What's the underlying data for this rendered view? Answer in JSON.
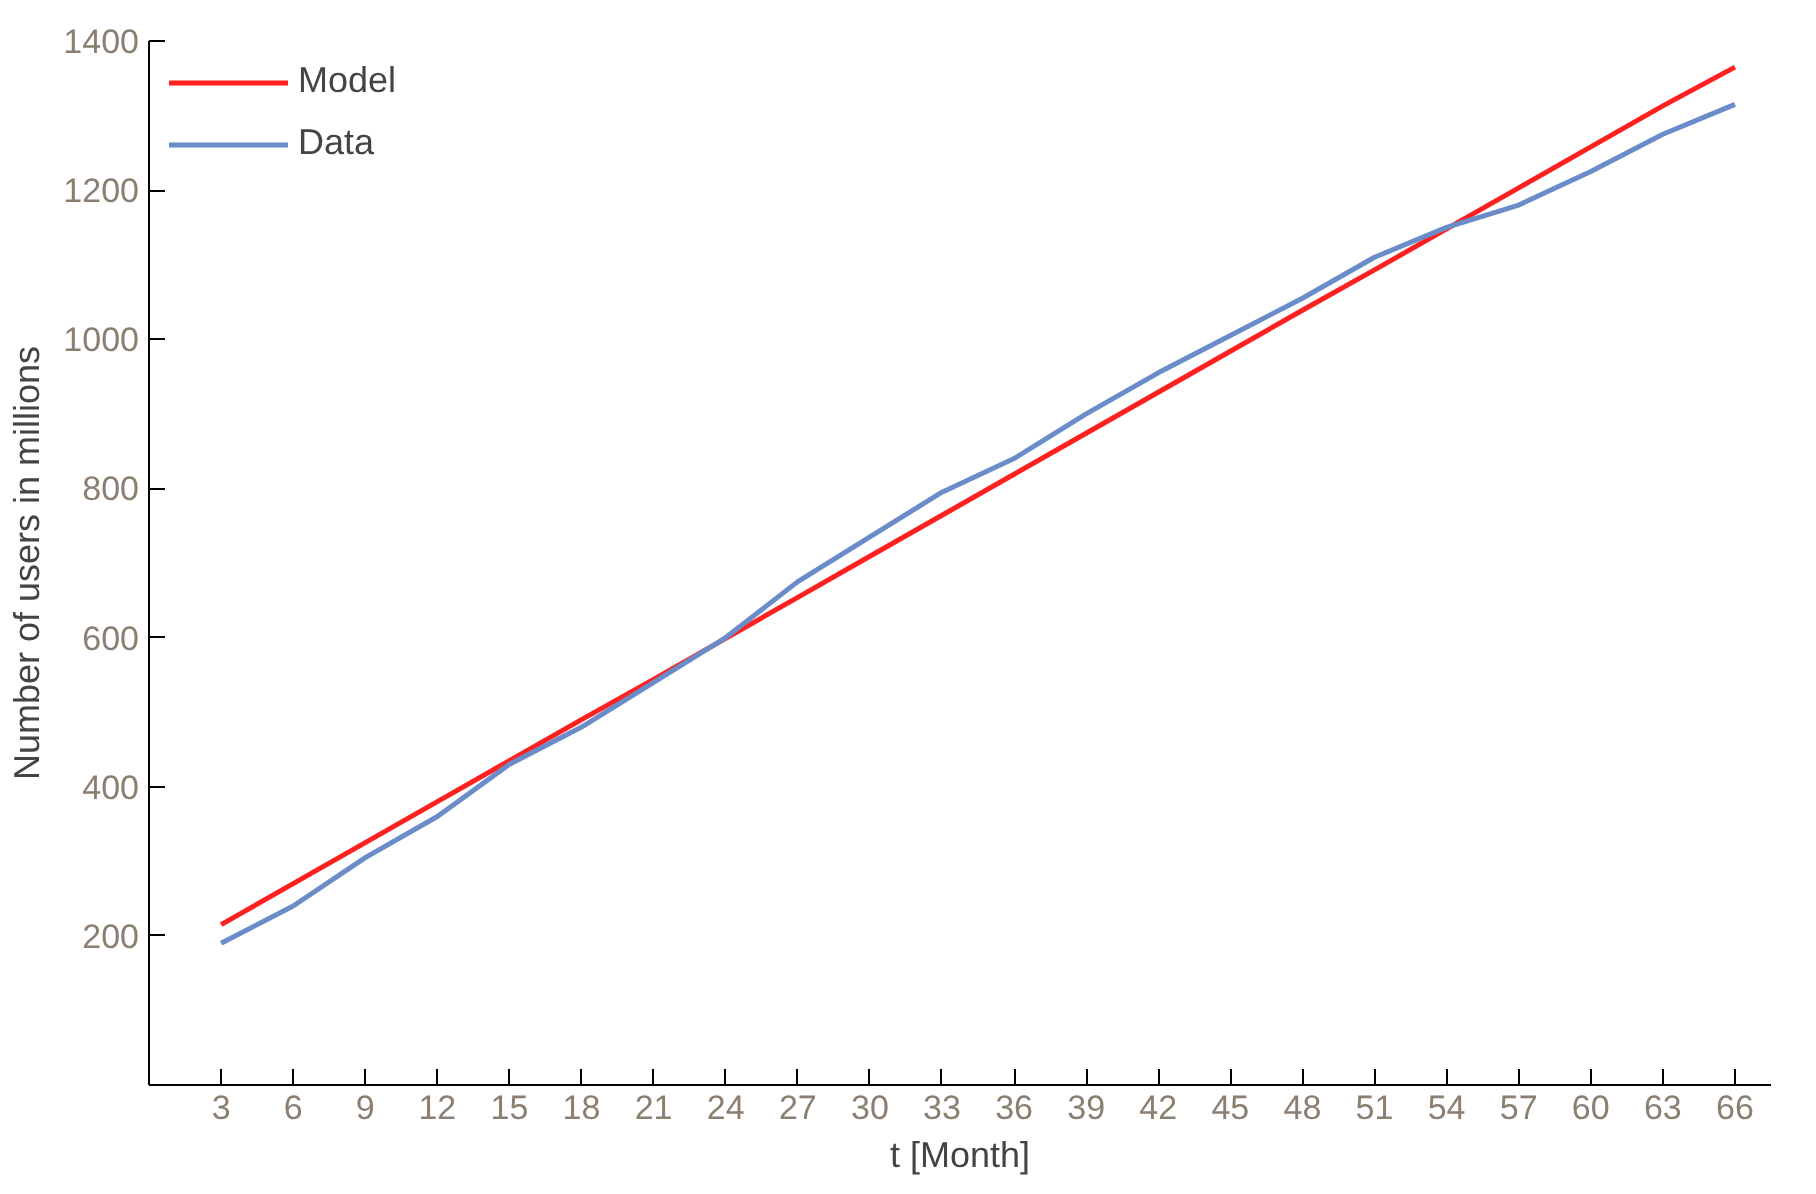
{
  "chart_data": {
    "type": "line",
    "xlabel": "t [Month]",
    "ylabel": "Number of users in millions",
    "x": [
      3,
      6,
      9,
      12,
      15,
      18,
      21,
      24,
      27,
      30,
      33,
      36,
      39,
      42,
      45,
      48,
      51,
      54,
      57,
      60,
      63,
      66
    ],
    "series": [
      {
        "name": "Model",
        "color": "#ff2020",
        "values": [
          215,
          270,
          325,
          380,
          435,
          490,
          544,
          599,
          654,
          709,
          764,
          819,
          874,
          929,
          984,
          1039,
          1093,
          1148,
          1203,
          1258,
          1313,
          1365
        ]
      },
      {
        "name": "Data",
        "color": "#6a8cc8",
        "values": [
          190,
          240,
          305,
          360,
          430,
          480,
          540,
          600,
          675,
          735,
          795,
          840,
          900,
          955,
          1005,
          1055,
          1110,
          1150,
          1180,
          1225,
          1275,
          1315
        ]
      }
    ],
    "xlim": [
      0,
      67.5
    ],
    "ylim": [
      0,
      1400
    ],
    "xticks": [
      3,
      6,
      9,
      12,
      15,
      18,
      21,
      24,
      27,
      30,
      33,
      36,
      39,
      42,
      45,
      48,
      51,
      54,
      57,
      60,
      63,
      66
    ],
    "yticks": [
      200,
      400,
      600,
      800,
      1000,
      1200,
      1400
    ],
    "grid": false,
    "legend": "top left",
    "marker": "none",
    "line_style": "solid"
  }
}
